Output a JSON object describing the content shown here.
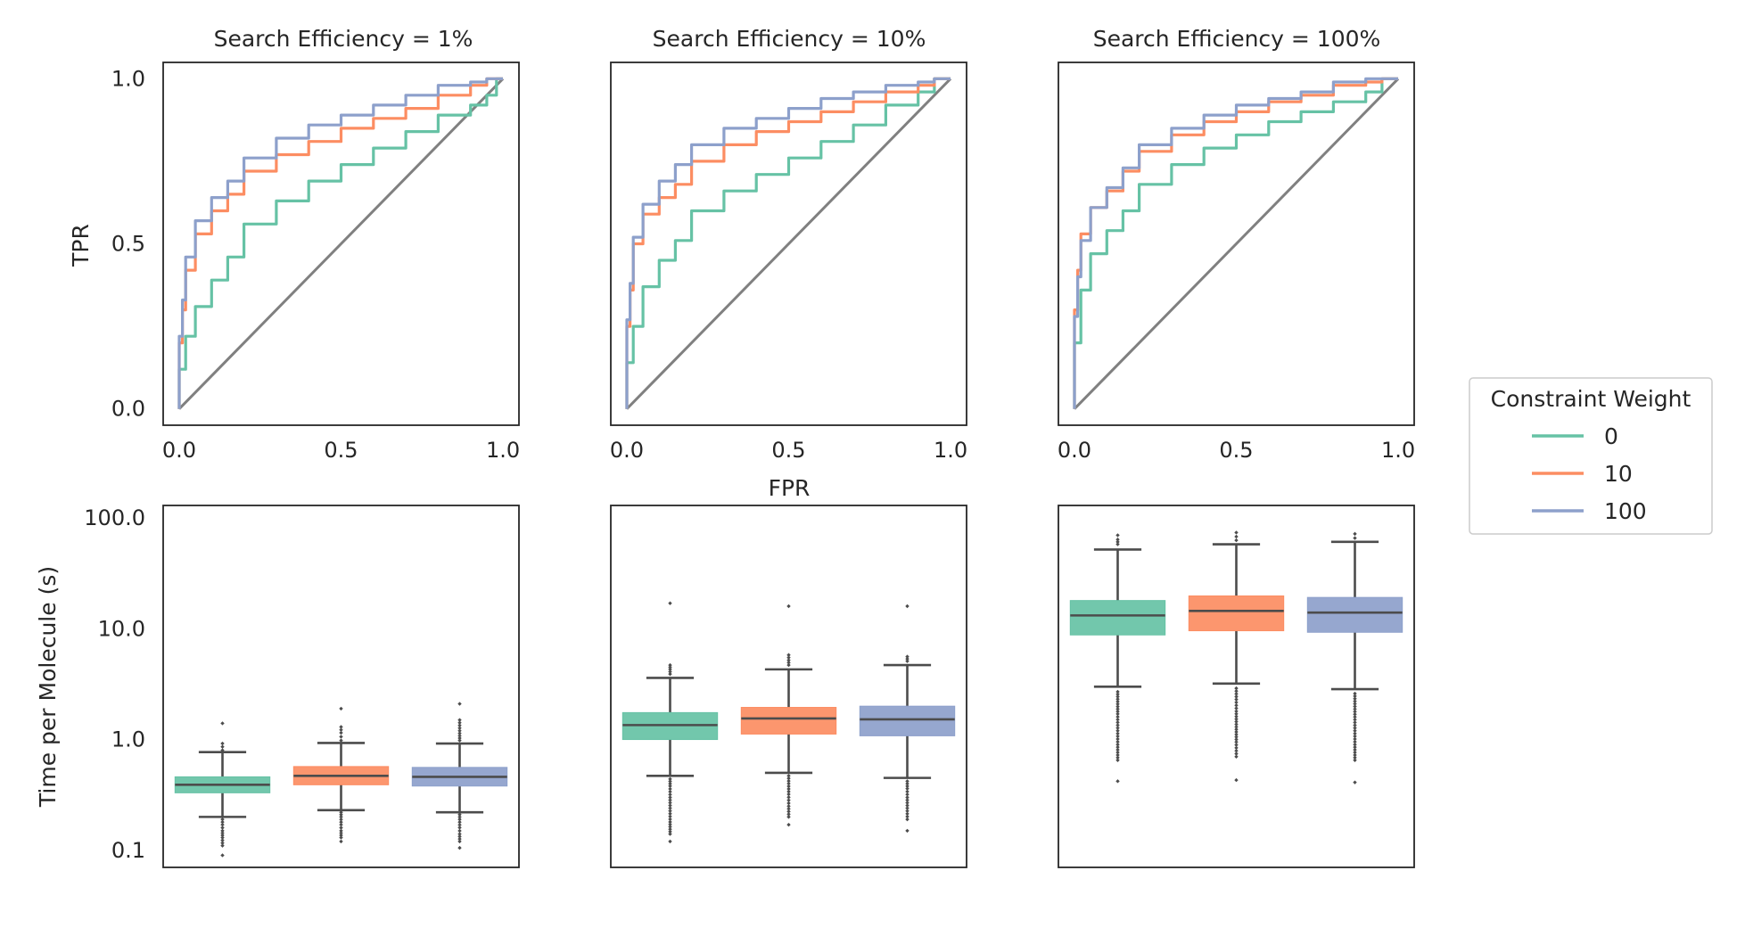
{
  "figure": {
    "xlabel": "FPR",
    "ylabel_top": "TPR",
    "ylabel_bottom": "Time per Molecule (s)"
  },
  "legend": {
    "title": "Constraint Weight",
    "entries": [
      {
        "label": "0",
        "color": "#66c2a5"
      },
      {
        "label": "10",
        "color": "#fc8d62"
      },
      {
        "label": "100",
        "color": "#8da0cb"
      }
    ]
  },
  "chart_data": [
    {
      "type": "line",
      "title": "Search Efficiency = 1%",
      "xlabel": "",
      "ylabel": "TPR",
      "xlim": [
        0,
        1
      ],
      "ylim": [
        0,
        1
      ],
      "x_ticks": [
        "0.0",
        "0.5",
        "1.0"
      ],
      "y_ticks": [
        "0.0",
        "0.5",
        "1.0"
      ],
      "diagonal_color": "#808080",
      "series": [
        {
          "name": "0",
          "x": [
            0,
            0.02,
            0.05,
            0.1,
            0.15,
            0.2,
            0.3,
            0.4,
            0.5,
            0.6,
            0.7,
            0.8,
            0.9,
            0.95,
            0.98,
            1.0
          ],
          "y": [
            0,
            0.12,
            0.22,
            0.31,
            0.39,
            0.46,
            0.56,
            0.63,
            0.69,
            0.74,
            0.79,
            0.84,
            0.89,
            0.92,
            0.95,
            1.0
          ]
        },
        {
          "name": "10",
          "x": [
            0,
            0.01,
            0.02,
            0.05,
            0.1,
            0.15,
            0.2,
            0.3,
            0.4,
            0.5,
            0.6,
            0.7,
            0.8,
            0.9,
            0.95,
            1.0
          ],
          "y": [
            0,
            0.2,
            0.3,
            0.42,
            0.53,
            0.6,
            0.65,
            0.72,
            0.77,
            0.81,
            0.85,
            0.88,
            0.91,
            0.95,
            0.98,
            1.0
          ]
        },
        {
          "name": "100",
          "x": [
            0,
            0.01,
            0.02,
            0.05,
            0.1,
            0.15,
            0.2,
            0.3,
            0.4,
            0.5,
            0.6,
            0.7,
            0.8,
            0.9,
            0.95,
            1.0
          ],
          "y": [
            0,
            0.22,
            0.33,
            0.46,
            0.57,
            0.64,
            0.69,
            0.76,
            0.82,
            0.86,
            0.89,
            0.92,
            0.95,
            0.98,
            0.99,
            1.0
          ]
        }
      ]
    },
    {
      "type": "line",
      "title": "Search Efficiency = 10%",
      "xlabel": "FPR",
      "ylabel": "",
      "xlim": [
        0,
        1
      ],
      "ylim": [
        0,
        1
      ],
      "x_ticks": [
        "0.0",
        "0.5",
        "1.0"
      ],
      "y_ticks": [],
      "diagonal_color": "#808080",
      "series": [
        {
          "name": "0",
          "x": [
            0,
            0.02,
            0.05,
            0.1,
            0.15,
            0.2,
            0.3,
            0.4,
            0.5,
            0.6,
            0.7,
            0.8,
            0.9,
            0.95,
            1.0
          ],
          "y": [
            0,
            0.14,
            0.25,
            0.37,
            0.45,
            0.51,
            0.6,
            0.66,
            0.71,
            0.76,
            0.81,
            0.86,
            0.92,
            0.96,
            1.0
          ]
        },
        {
          "name": "10",
          "x": [
            0,
            0.01,
            0.02,
            0.05,
            0.1,
            0.15,
            0.2,
            0.3,
            0.4,
            0.5,
            0.6,
            0.7,
            0.8,
            0.9,
            0.95,
            1.0
          ],
          "y": [
            0,
            0.25,
            0.36,
            0.5,
            0.59,
            0.64,
            0.68,
            0.75,
            0.8,
            0.84,
            0.87,
            0.9,
            0.93,
            0.96,
            0.98,
            1.0
          ]
        },
        {
          "name": "100",
          "x": [
            0,
            0.01,
            0.02,
            0.05,
            0.1,
            0.15,
            0.2,
            0.3,
            0.4,
            0.5,
            0.6,
            0.7,
            0.8,
            0.9,
            0.95,
            1.0
          ],
          "y": [
            0,
            0.27,
            0.38,
            0.52,
            0.62,
            0.69,
            0.74,
            0.8,
            0.85,
            0.88,
            0.91,
            0.94,
            0.96,
            0.98,
            0.99,
            1.0
          ]
        }
      ]
    },
    {
      "type": "line",
      "title": "Search Efficiency = 100%",
      "xlabel": "",
      "ylabel": "",
      "xlim": [
        0,
        1
      ],
      "ylim": [
        0,
        1
      ],
      "x_ticks": [
        "0.0",
        "0.5",
        "1.0"
      ],
      "y_ticks": [],
      "diagonal_color": "#808080",
      "series": [
        {
          "name": "0",
          "x": [
            0,
            0.02,
            0.05,
            0.1,
            0.15,
            0.2,
            0.3,
            0.4,
            0.5,
            0.6,
            0.7,
            0.8,
            0.9,
            0.95,
            1.0
          ],
          "y": [
            0,
            0.2,
            0.36,
            0.47,
            0.54,
            0.6,
            0.68,
            0.74,
            0.79,
            0.83,
            0.87,
            0.9,
            0.93,
            0.96,
            1.0
          ]
        },
        {
          "name": "10",
          "x": [
            0,
            0.01,
            0.02,
            0.05,
            0.1,
            0.15,
            0.2,
            0.3,
            0.4,
            0.5,
            0.6,
            0.7,
            0.8,
            0.9,
            0.95,
            1.0
          ],
          "y": [
            0,
            0.3,
            0.42,
            0.53,
            0.61,
            0.66,
            0.72,
            0.78,
            0.83,
            0.87,
            0.9,
            0.93,
            0.95,
            0.98,
            0.99,
            1.0
          ]
        },
        {
          "name": "100",
          "x": [
            0,
            0.01,
            0.02,
            0.05,
            0.1,
            0.15,
            0.2,
            0.3,
            0.4,
            0.5,
            0.6,
            0.7,
            0.8,
            0.9,
            0.95,
            1.0
          ],
          "y": [
            0,
            0.28,
            0.4,
            0.51,
            0.61,
            0.67,
            0.73,
            0.8,
            0.85,
            0.89,
            0.92,
            0.94,
            0.96,
            0.99,
            1.0,
            1.0
          ]
        }
      ]
    },
    {
      "type": "box",
      "title": "",
      "ylabel": "Time per Molecule (s)",
      "yscale": "log",
      "ylim": [
        0.07,
        130
      ],
      "y_ticks": [
        "0.1",
        "1.0",
        "10.0",
        "100.0"
      ],
      "median_color": "#4c4c4c",
      "boxes": [
        {
          "name": "0",
          "q1": 0.33,
          "median": 0.39,
          "q3": 0.46,
          "whisker_low": 0.2,
          "whisker_high": 0.77,
          "outliers_low": [
            0.19,
            0.17,
            0.15,
            0.13,
            0.11,
            0.09
          ],
          "outliers_high": [
            0.8,
            0.86,
            0.92,
            1.4
          ]
        },
        {
          "name": "10",
          "q1": 0.39,
          "median": 0.47,
          "q3": 0.57,
          "whisker_low": 0.23,
          "whisker_high": 0.93,
          "outliers_low": [
            0.22,
            0.2,
            0.17,
            0.15,
            0.13,
            0.12
          ],
          "outliers_high": [
            0.98,
            1.06,
            1.15,
            1.3,
            1.9
          ]
        },
        {
          "name": "100",
          "q1": 0.38,
          "median": 0.46,
          "q3": 0.56,
          "whisker_low": 0.22,
          "whisker_high": 0.92,
          "outliers_low": [
            0.21,
            0.19,
            0.16,
            0.14,
            0.12,
            0.105
          ],
          "outliers_high": [
            0.98,
            1.08,
            1.2,
            1.5,
            2.1
          ]
        }
      ]
    },
    {
      "type": "box",
      "title": "",
      "ylabel": "",
      "yscale": "log",
      "ylim": [
        0.07,
        130
      ],
      "y_ticks": [],
      "median_color": "#4c4c4c",
      "boxes": [
        {
          "name": "0",
          "q1": 1.0,
          "median": 1.35,
          "q3": 1.75,
          "whisker_low": 0.47,
          "whisker_high": 3.6,
          "outliers_low": [
            0.44,
            0.38,
            0.3,
            0.24,
            0.18,
            0.14,
            0.12
          ],
          "outliers_high": [
            3.9,
            4.3,
            4.7,
            17
          ]
        },
        {
          "name": "10",
          "q1": 1.12,
          "median": 1.55,
          "q3": 1.95,
          "whisker_low": 0.5,
          "whisker_high": 4.3,
          "outliers_low": [
            0.47,
            0.4,
            0.32,
            0.25,
            0.2,
            0.17
          ],
          "outliers_high": [
            4.7,
            5.2,
            5.8,
            16
          ]
        },
        {
          "name": "100",
          "q1": 1.08,
          "median": 1.52,
          "q3": 2.0,
          "whisker_low": 0.45,
          "whisker_high": 4.7,
          "outliers_low": [
            0.42,
            0.36,
            0.3,
            0.24,
            0.19,
            0.15
          ],
          "outliers_high": [
            5.1,
            5.6,
            16
          ]
        }
      ]
    },
    {
      "type": "box",
      "title": "",
      "ylabel": "",
      "yscale": "log",
      "ylim": [
        0.07,
        130
      ],
      "y_ticks": [],
      "median_color": "#4c4c4c",
      "boxes": [
        {
          "name": "0",
          "q1": 8.8,
          "median": 13.2,
          "q3": 18.0,
          "whisker_low": 3.0,
          "whisker_high": 52,
          "outliers_low": [
            2.7,
            2.2,
            1.7,
            1.2,
            0.9,
            0.65,
            0.42
          ],
          "outliers_high": [
            58,
            64,
            70
          ]
        },
        {
          "name": "10",
          "q1": 9.6,
          "median": 14.5,
          "q3": 19.8,
          "whisker_low": 3.2,
          "whisker_high": 58,
          "outliers_low": [
            2.9,
            2.3,
            1.8,
            1.3,
            0.95,
            0.7,
            0.43
          ],
          "outliers_high": [
            63,
            68,
            74
          ]
        },
        {
          "name": "100",
          "q1": 9.3,
          "median": 14.0,
          "q3": 19.2,
          "whisker_low": 2.85,
          "whisker_high": 61,
          "outliers_low": [
            2.6,
            2.1,
            1.6,
            1.2,
            0.9,
            0.65,
            0.41
          ],
          "outliers_high": [
            66,
            72
          ]
        }
      ]
    }
  ]
}
